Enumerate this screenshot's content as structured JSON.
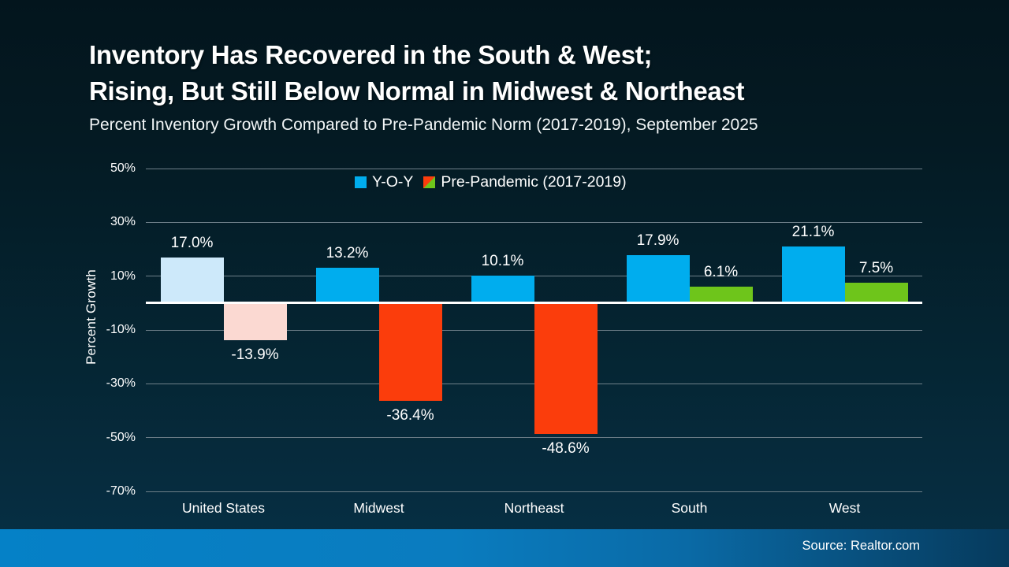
{
  "title": {
    "line1": "Inventory Has Recovered in the South & West;",
    "line2": "Rising, But Still Below Normal in Midwest & Northeast"
  },
  "subtitle": "Percent Inventory Growth Compared to Pre-Pandemic Norm (2017-2019), September 2025",
  "legend": [
    {
      "label": "Y-O-Y",
      "swatch": "solid",
      "color": "#00adee"
    },
    {
      "label": "Pre-Pandemic (2017-2019)",
      "swatch": "split",
      "colors": [
        "#fb3d0c",
        "#6ec51b"
      ]
    }
  ],
  "chart_data": {
    "type": "bar",
    "categories": [
      "United States",
      "Midwest",
      "Northeast",
      "South",
      "West"
    ],
    "series": [
      {
        "name": "Y-O-Y",
        "values": [
          17.0,
          13.2,
          10.1,
          17.9,
          21.1
        ],
        "labels": [
          "17.0%",
          "13.2%",
          "10.1%",
          "17.9%",
          "21.1%"
        ],
        "colors": [
          "#cde9fa",
          "#00adee",
          "#00adee",
          "#00adee",
          "#00adee"
        ]
      },
      {
        "name": "Pre-Pandemic (2017-2019)",
        "values": [
          -13.9,
          -36.4,
          -48.6,
          6.1,
          7.5
        ],
        "labels": [
          "-13.9%",
          "-36.4%",
          "-48.6%",
          "6.1%",
          "7.5%"
        ],
        "colors": [
          "#fbd9d2",
          "#fb3d0c",
          "#fb3d0c",
          "#6ec51b",
          "#6ec51b"
        ]
      }
    ],
    "title": "Inventory Has Recovered in the South & West; Rising, But Still Below Normal in Midwest & Northeast",
    "xlabel": "",
    "ylabel": "Percent Growth",
    "ylim": [
      -70,
      50
    ],
    "yticks": [
      {
        "value": 50,
        "label": "50%"
      },
      {
        "value": 30,
        "label": "30%"
      },
      {
        "value": 10,
        "label": "10%"
      },
      {
        "value": -10,
        "label": "-10%"
      },
      {
        "value": -30,
        "label": "-30%"
      },
      {
        "value": -50,
        "label": "-50%"
      },
      {
        "value": -70,
        "label": "-70%"
      }
    ],
    "grid": true,
    "legend_position": "top"
  },
  "footer": {
    "source": "Source: Realtor.com"
  },
  "colors": {
    "accent_blue": "#00adee",
    "muted_blue": "#cde9fa",
    "alert_red": "#fb3d0c",
    "muted_red": "#fbd9d2",
    "green": "#6ec51b",
    "gridline": "#6e7f89",
    "zero_line": "#ffffff",
    "footer_left": "#0581c7",
    "footer_right": "#063a5c",
    "background_top": "#041a23",
    "background_bottom": "#073046"
  }
}
